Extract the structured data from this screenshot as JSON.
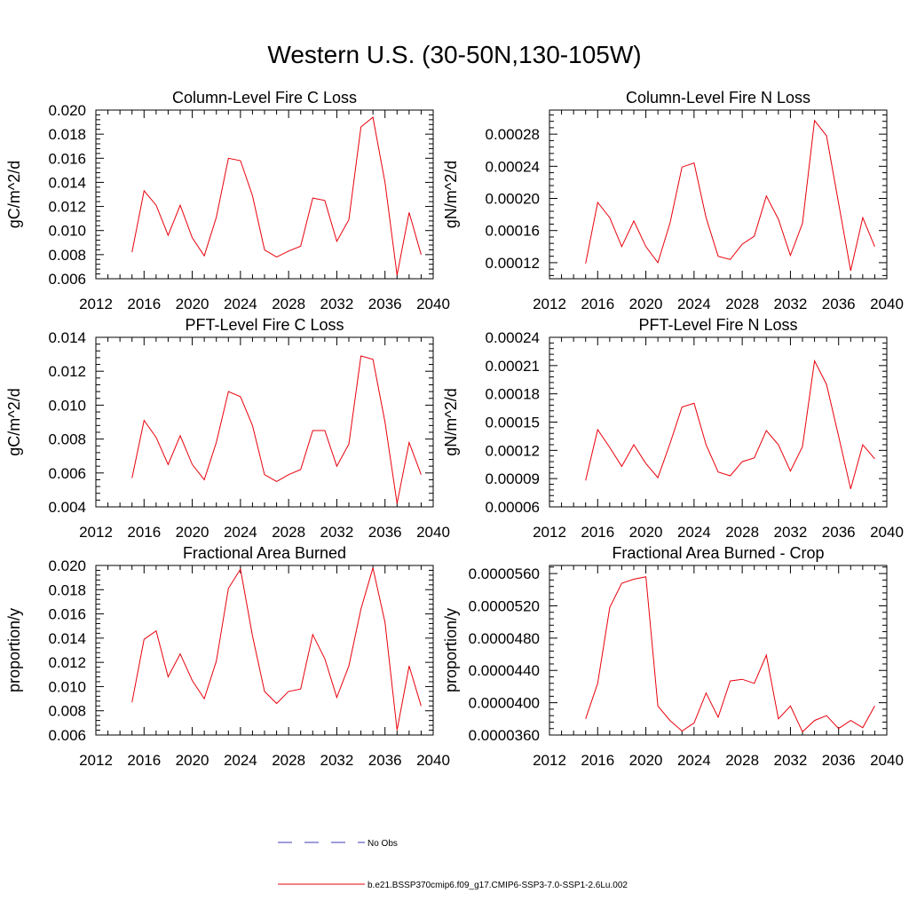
{
  "main_title": "Western U.S. (30-50N,130-105W)",
  "line_color": "#e8000b",
  "obs_color": "#3b3bb3",
  "legend": [
    {
      "label": "No Obs",
      "style": "dashed"
    },
    {
      "label": "b.e21.BSSP370cmip6.f09_g17.CMIP6-SSP3-7.0-SSP1-2.6Lu.002",
      "style": "solid"
    }
  ],
  "chart_data": [
    {
      "type": "line",
      "title": "Column-Level Fire C Loss",
      "ylabel": "gC/m^2/d",
      "xlim": [
        2012,
        2040
      ],
      "ylim": [
        0.006,
        0.02
      ],
      "xticks": [
        "2012",
        "2016",
        "2020",
        "2024",
        "2028",
        "2032",
        "2036",
        "2040"
      ],
      "yticks": [
        "0.006",
        "0.008",
        "0.010",
        "0.012",
        "0.014",
        "0.016",
        "0.018",
        "0.020"
      ],
      "x": [
        2015,
        2016,
        2017,
        2018,
        2019,
        2020,
        2021,
        2022,
        2023,
        2024,
        2025,
        2026,
        2027,
        2028,
        2029,
        2030,
        2031,
        2032,
        2033,
        2034,
        2035,
        2036,
        2037,
        2038,
        2039
      ],
      "values": [
        0.0082,
        0.0133,
        0.0121,
        0.0096,
        0.0121,
        0.0094,
        0.0079,
        0.0111,
        0.016,
        0.0158,
        0.0129,
        0.0084,
        0.0078,
        0.0083,
        0.0087,
        0.0127,
        0.0125,
        0.0091,
        0.0109,
        0.0186,
        0.0194,
        0.014,
        0.0063,
        0.0115,
        0.008
      ]
    },
    {
      "type": "line",
      "title": "Column-Level Fire N Loss",
      "ylabel": "gN/m^2/d",
      "xlim": [
        2012,
        2040
      ],
      "ylim": [
        0.0001,
        0.00031
      ],
      "xticks": [
        "2012",
        "2016",
        "2020",
        "2024",
        "2028",
        "2032",
        "2036",
        "2040"
      ],
      "yticks": [
        "0.00012",
        "0.00016",
        "0.00020",
        "0.00024",
        "0.00028"
      ],
      "x": [
        2015,
        2016,
        2017,
        2018,
        2019,
        2020,
        2021,
        2022,
        2023,
        2024,
        2025,
        2026,
        2027,
        2028,
        2029,
        2030,
        2031,
        2032,
        2033,
        2034,
        2035,
        2036,
        2037,
        2038,
        2039
      ],
      "values": [
        0.000119,
        0.000195,
        0.000176,
        0.00014,
        0.000172,
        0.00014,
        0.00012,
        0.000169,
        0.000239,
        0.000244,
        0.000176,
        0.000128,
        0.000124,
        0.000143,
        0.000153,
        0.000203,
        0.000174,
        0.000129,
        0.000169,
        0.000297,
        0.000278,
        0.000194,
        0.00011,
        0.000176,
        0.00014
      ]
    },
    {
      "type": "line",
      "title": "PFT-Level Fire C Loss",
      "ylabel": "gC/m^2/d",
      "xlim": [
        2012,
        2040
      ],
      "ylim": [
        0.004,
        0.014
      ],
      "xticks": [
        "2012",
        "2016",
        "2020",
        "2024",
        "2028",
        "2032",
        "2036",
        "2040"
      ],
      "yticks": [
        "0.004",
        "0.006",
        "0.008",
        "0.010",
        "0.012",
        "0.014"
      ],
      "x": [
        2015,
        2016,
        2017,
        2018,
        2019,
        2020,
        2021,
        2022,
        2023,
        2024,
        2025,
        2026,
        2027,
        2028,
        2029,
        2030,
        2031,
        2032,
        2033,
        2034,
        2035,
        2036,
        2037,
        2038,
        2039
      ],
      "values": [
        0.0057,
        0.0091,
        0.0081,
        0.0065,
        0.0082,
        0.0065,
        0.0056,
        0.0078,
        0.0108,
        0.0105,
        0.0088,
        0.0059,
        0.0055,
        0.0059,
        0.0062,
        0.0085,
        0.0085,
        0.0064,
        0.0077,
        0.0129,
        0.0127,
        0.009,
        0.0042,
        0.0078,
        0.0059
      ]
    },
    {
      "type": "line",
      "title": "PFT-Level Fire N Loss",
      "ylabel": "gN/m^2/d",
      "xlim": [
        2012,
        2040
      ],
      "ylim": [
        6e-05,
        0.00024
      ],
      "xticks": [
        "2012",
        "2016",
        "2020",
        "2024",
        "2028",
        "2032",
        "2036",
        "2040"
      ],
      "yticks": [
        "0.00006",
        "0.00009",
        "0.00012",
        "0.00015",
        "0.00018",
        "0.00021",
        "0.00024"
      ],
      "x": [
        2015,
        2016,
        2017,
        2018,
        2019,
        2020,
        2021,
        2022,
        2023,
        2024,
        2025,
        2026,
        2027,
        2028,
        2029,
        2030,
        2031,
        2032,
        2033,
        2034,
        2035,
        2036,
        2037,
        2038,
        2039
      ],
      "values": [
        8.8e-05,
        0.000142,
        0.000123,
        0.000103,
        0.000126,
        0.000106,
        9.1e-05,
        0.000127,
        0.000166,
        0.00017,
        0.000126,
        9.7e-05,
        9.3e-05,
        0.000108,
        0.000112,
        0.000141,
        0.000126,
        9.8e-05,
        0.000124,
        0.000215,
        0.00019,
        0.000135,
        7.9e-05,
        0.000126,
        0.000111
      ]
    },
    {
      "type": "line",
      "title": "Fractional Area Burned",
      "ylabel": "proportion/y",
      "xlim": [
        2012,
        2040
      ],
      "ylim": [
        0.006,
        0.02
      ],
      "xticks": [
        "2012",
        "2016",
        "2020",
        "2024",
        "2028",
        "2032",
        "2036",
        "2040"
      ],
      "yticks": [
        "0.006",
        "0.008",
        "0.010",
        "0.012",
        "0.014",
        "0.016",
        "0.018",
        "0.020"
      ],
      "x": [
        2015,
        2016,
        2017,
        2018,
        2019,
        2020,
        2021,
        2022,
        2023,
        2024,
        2025,
        2026,
        2027,
        2028,
        2029,
        2030,
        2031,
        2032,
        2033,
        2034,
        2035,
        2036,
        2037,
        2038,
        2039
      ],
      "values": [
        0.0087,
        0.0139,
        0.0146,
        0.0108,
        0.0127,
        0.0105,
        0.009,
        0.0121,
        0.0181,
        0.0197,
        0.0142,
        0.0096,
        0.0086,
        0.0096,
        0.0098,
        0.0143,
        0.0123,
        0.0091,
        0.0117,
        0.0164,
        0.0198,
        0.0153,
        0.0064,
        0.0117,
        0.0084
      ]
    },
    {
      "type": "line",
      "title": "Fractional Area Burned - Crop",
      "ylabel": "proportion/y",
      "xlim": [
        2012,
        2040
      ],
      "ylim": [
        3.6e-05,
        5.7e-05
      ],
      "xticks": [
        "2012",
        "2016",
        "2020",
        "2024",
        "2028",
        "2032",
        "2036",
        "2040"
      ],
      "yticks": [
        "0.0000360",
        "0.0000400",
        "0.0000440",
        "0.0000480",
        "0.0000520",
        "0.0000560"
      ],
      "x": [
        2015,
        2016,
        2017,
        2018,
        2019,
        2020,
        2021,
        2022,
        2023,
        2024,
        2025,
        2026,
        2027,
        2028,
        2029,
        2030,
        2031,
        2032,
        2033,
        2034,
        2035,
        2036,
        2037,
        2038,
        2039
      ],
      "values": [
        3.8e-05,
        4.24e-05,
        5.18e-05,
        5.48e-05,
        5.53e-05,
        5.56e-05,
        3.96e-05,
        3.78e-05,
        3.65e-05,
        3.75e-05,
        4.12e-05,
        3.82e-05,
        4.27e-05,
        4.29e-05,
        4.24e-05,
        4.59e-05,
        3.8e-05,
        3.96e-05,
        3.64e-05,
        3.78e-05,
        3.84e-05,
        3.68e-05,
        3.78e-05,
        3.69e-05,
        3.96e-05
      ]
    }
  ]
}
